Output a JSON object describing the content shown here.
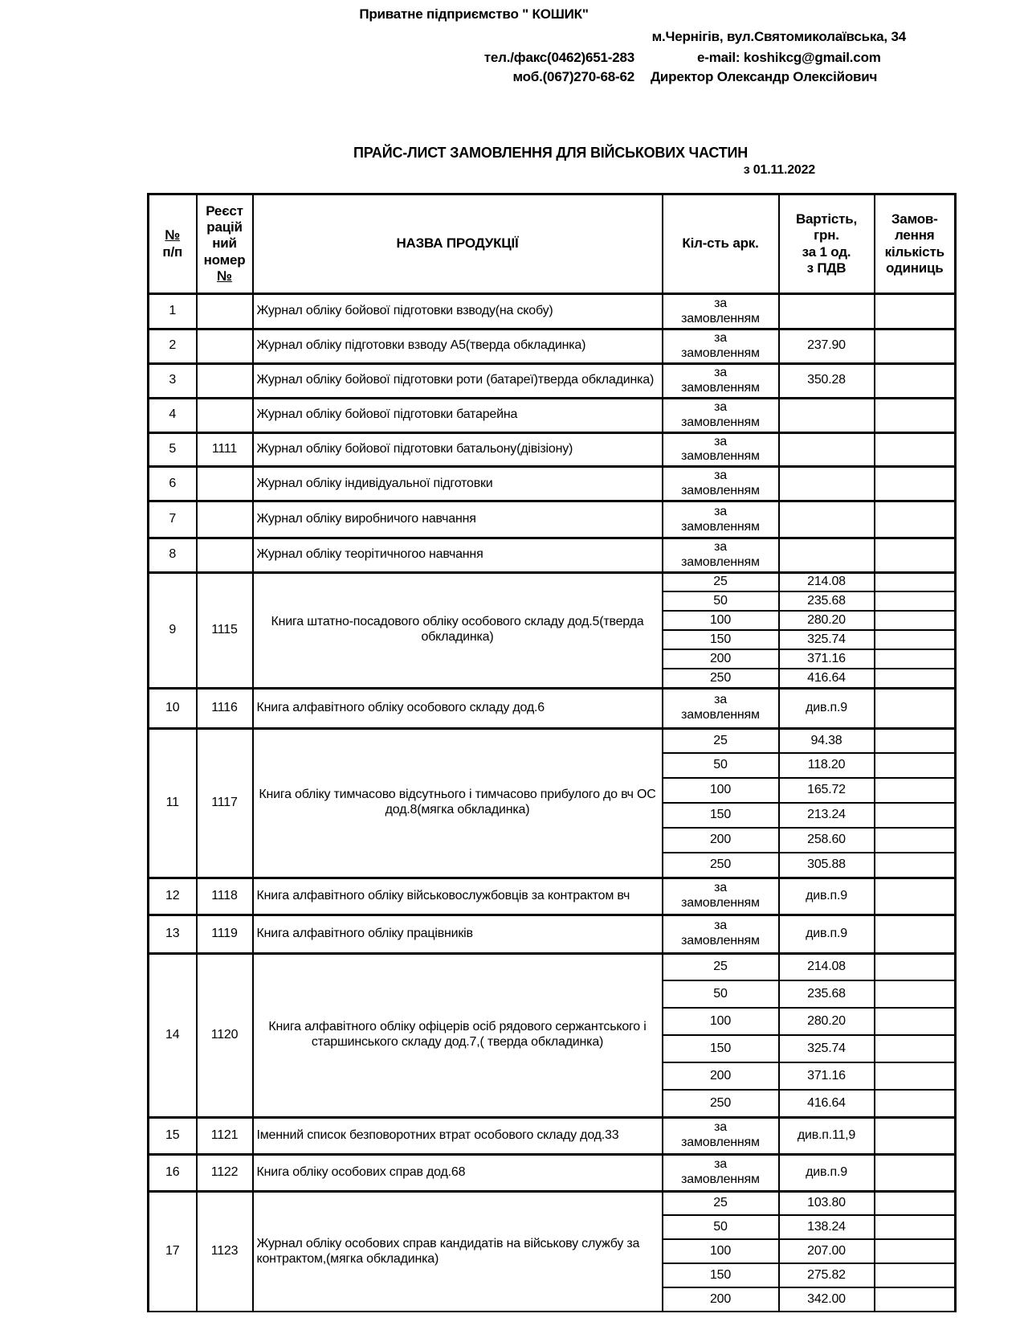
{
  "page": {
    "company": "Приватне підприємство \" КОШИК\"",
    "address": "м.Чернігів, вул.Святомиколаївська, 34",
    "phone_fax": "тел./факс(0462)651-283",
    "email": "e-mail:  koshikcg@gmail.com",
    "mobile": "моб.(067)270-68-62",
    "director": "Директор Олександр Олексійович",
    "title": "ПРАЙС-ЛИСТ  ЗАМОВЛЕННЯ ДЛЯ ВІЙСЬКОВИХ ЧАСТИН",
    "date": "з 01.11.2022"
  },
  "table": {
    "header": {
      "num_top": "№",
      "num_bottom": "п/п",
      "reg_top": "Реєст\nрацій\nний\nномер",
      "reg_bottom": "№",
      "name": "НАЗВА ПРОДУКЦІЇ",
      "qty": "Кіл-сть арк.",
      "price": "Вартість,\nгрн.\nза 1 од.\nз ПДВ",
      "order": "Замов-\nлення\nкількість\nодиниць"
    },
    "rows": [
      {
        "num": "1",
        "reg": "",
        "name": "Журнал обліку бойової підготовки взводу(на скобу)",
        "align": "left",
        "variants": [
          {
            "qty": "за\nзамовленням",
            "price": ""
          }
        ]
      },
      {
        "num": "2",
        "reg": "",
        "name": "Журнал обліку підготовки взводу А5(тверда обкладинка)",
        "align": "left",
        "variants": [
          {
            "qty": "за\nзамовленням",
            "price": "237.90"
          }
        ]
      },
      {
        "num": "3",
        "reg": "",
        "name": "Журнал обліку бойової підготовки роти (батареї)тверда обкладинка)",
        "align": "left",
        "variants": [
          {
            "qty": "за\nзамовленням",
            "price": "350.28"
          }
        ]
      },
      {
        "num": "4",
        "reg": "",
        "name": "Журнал обліку бойової підготовки  батарейна",
        "align": "left",
        "variants": [
          {
            "qty": "за\nзамовленням",
            "price": ""
          }
        ]
      },
      {
        "num": "5",
        "reg": "1111",
        "name": "Журнал обліку бойової підготовки  батальону(дівізіону)",
        "align": "left",
        "variants": [
          {
            "qty": "за\nзамовленням",
            "price": ""
          }
        ]
      },
      {
        "num": "6",
        "reg": "",
        "name": "Журнал обліку індивідуальної підготовки",
        "align": "left",
        "variants": [
          {
            "qty": "за\nзамовленням",
            "price": ""
          }
        ]
      },
      {
        "num": "7",
        "reg": "",
        "name": "Журнал обліку виробничого навчання",
        "align": "left",
        "variants": [
          {
            "qty": "за\nзамовленням",
            "price": ""
          }
        ]
      },
      {
        "num": "8",
        "reg": "",
        "name": "Журнал обліку теорітичногоо навчання",
        "align": "left",
        "variants": [
          {
            "qty": "за\nзамовленням",
            "price": ""
          }
        ]
      },
      {
        "num": "9",
        "reg": "1115",
        "name": "Книга штатно-посадового обліку особового складу дод.5(тверда обкладинка)",
        "align": "center",
        "variants": [
          {
            "qty": "25",
            "price": "214.08"
          },
          {
            "qty": "50",
            "price": "235.68"
          },
          {
            "qty": "100",
            "price": "280.20"
          },
          {
            "qty": "150",
            "price": "325.74"
          },
          {
            "qty": "200",
            "price": "371.16"
          },
          {
            "qty": "250",
            "price": "416.64"
          }
        ]
      },
      {
        "num": "10",
        "reg": "1116",
        "name": "Книга алфавітного обліку особового складу дод.6",
        "align": "left",
        "variants": [
          {
            "qty": "за\nзамовленням",
            "price": "див.п.9"
          }
        ]
      },
      {
        "num": "11",
        "reg": "1117",
        "name": "Книга обліку тимчасово відсутнього і тимчасово прибулого до вч ОС дод.8(мягка обкладинка)",
        "align": "center",
        "variants": [
          {
            "qty": "25",
            "price": "94.38"
          },
          {
            "qty": "50",
            "price": "118.20"
          },
          {
            "qty": "100",
            "price": "165.72"
          },
          {
            "qty": "150",
            "price": "213.24"
          },
          {
            "qty": "200",
            "price": "258.60"
          },
          {
            "qty": "250",
            "price": "305.88"
          }
        ]
      },
      {
        "num": "12",
        "reg": "1118",
        "name": "Книга алфавітного обліку військовослужбовців за контрактом вч",
        "align": "left",
        "variants": [
          {
            "qty": "за\nзамовленням",
            "price": "див.п.9"
          }
        ]
      },
      {
        "num": "13",
        "reg": "1119",
        "name": "Книга алфавітного обліку працівників",
        "align": "left",
        "variants": [
          {
            "qty": "за\nзамовленням",
            "price": "див.п.9"
          }
        ]
      },
      {
        "num": "14",
        "reg": "1120",
        "name": "Книга алфавітного обліку офіцерів осіб рядового сержантського і старшинського складу дод.7,( тверда обкладинка)",
        "align": "center",
        "variants": [
          {
            "qty": "25",
            "price": "214.08"
          },
          {
            "qty": "50",
            "price": "235.68"
          },
          {
            "qty": "100",
            "price": "280.20"
          },
          {
            "qty": "150",
            "price": "325.74"
          },
          {
            "qty": "200",
            "price": "371.16"
          },
          {
            "qty": "250",
            "price": "416.64"
          }
        ]
      },
      {
        "num": "15",
        "reg": "1121",
        "name": "Іменний список безповоротних втрат особового складу дод.33",
        "align": "left",
        "variants": [
          {
            "qty": "за\nзамовленням",
            "price": "див.п.11,9"
          }
        ]
      },
      {
        "num": "16",
        "reg": "1122",
        "name": "Книга обліку особових справ дод.68",
        "align": "left",
        "variants": [
          {
            "qty": "за\nзамовленням",
            "price": "див.п.9"
          }
        ]
      },
      {
        "num": "17",
        "reg": "1123",
        "name": "Журнал обліку особових справ кандидатів на військову службу за контрактом,(мягка обкладинка)",
        "align": "left",
        "variants": [
          {
            "qty": "25",
            "price": "103.80"
          },
          {
            "qty": "50",
            "price": "138.24"
          },
          {
            "qty": "100",
            "price": "207.00"
          },
          {
            "qty": "150",
            "price": "275.82"
          },
          {
            "qty": "200",
            "price": "342.00"
          }
        ]
      }
    ]
  }
}
